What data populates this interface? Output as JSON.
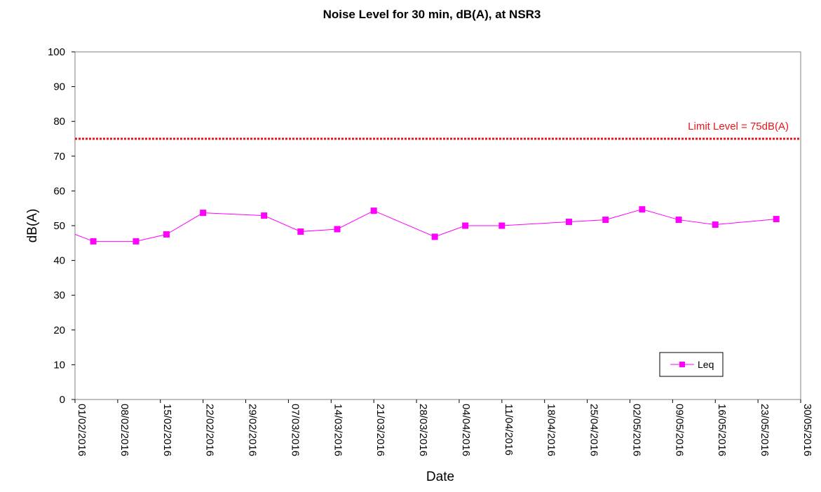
{
  "chart_data": {
    "type": "line",
    "title": "Noise Level for 30 min, dB(A), at NSR3",
    "xlabel": "Date",
    "ylabel": "dB(A)",
    "ylim": [
      0,
      100
    ],
    "yticks": [
      0,
      10,
      20,
      30,
      40,
      50,
      60,
      70,
      80,
      90,
      100
    ],
    "xlim": [
      "2016-02-01",
      "2016-05-30"
    ],
    "xtick_labels": [
      "01/02/2016",
      "08/02/2016",
      "15/02/2016",
      "22/02/2016",
      "29/02/2016",
      "07/03/2016",
      "14/03/2016",
      "21/03/2016",
      "28/03/2016",
      "04/04/2016",
      "11/04/2016",
      "18/04/2016",
      "25/04/2016",
      "02/05/2016",
      "09/05/2016",
      "16/05/2016",
      "23/05/2016",
      "30/05/2016"
    ],
    "grid": false,
    "legend_position": "bottom-right",
    "series": [
      {
        "name": "Leq",
        "color": "#ff00ff",
        "marker": "square",
        "x": [
          "2016-02-04",
          "2016-02-11",
          "2016-02-16",
          "2016-02-22",
          "2016-03-03",
          "2016-03-09",
          "2016-03-15",
          "2016-03-21",
          "2016-03-31",
          "2016-04-05",
          "2016-04-11",
          "2016-04-22",
          "2016-04-28",
          "2016-05-04",
          "2016-05-10",
          "2016-05-16",
          "2016-05-26"
        ],
        "values": [
          45.5,
          45.5,
          47.5,
          53.7,
          52.9,
          48.3,
          49.0,
          54.3,
          46.8,
          50.0,
          50.0,
          51.1,
          51.7,
          54.7,
          51.7,
          50.3,
          51.9
        ],
        "leading_value": 47.5
      }
    ],
    "reference_lines": [
      {
        "value": 75,
        "label": "Limit Level = 75dB(A)",
        "color": "#e8141b",
        "style": "dotted"
      }
    ]
  }
}
